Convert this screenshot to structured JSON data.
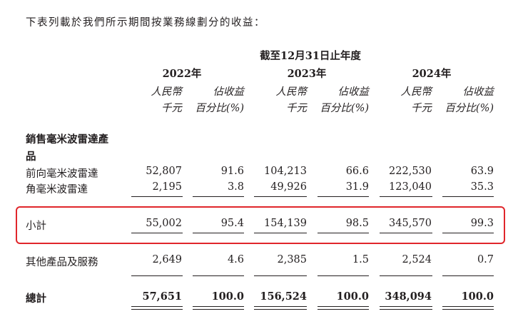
{
  "intro": "下表列載於我們所示期間按業務線劃分的收益：",
  "period_header": "截至12月31日止年度",
  "years": [
    "2022年",
    "2023年",
    "2024年"
  ],
  "col_header_rmb_1": "人民幣",
  "col_header_rmb_2": "千元",
  "col_header_pct_1": "佔收益",
  "col_header_pct_2": "百分比(%)",
  "category_label": "銷售毫米波雷達產品",
  "rows": [
    {
      "label": "前向毫米波雷達",
      "v2022": "52,807",
      "p2022": "91.6",
      "v2023": "104,213",
      "p2023": "66.6",
      "v2024": "222,530",
      "p2024": "63.9"
    },
    {
      "label": "角毫米波雷達",
      "v2022": "2,195",
      "p2022": "3.8",
      "v2023": "49,926",
      "p2023": "31.9",
      "v2024": "123,040",
      "p2024": "35.3"
    },
    {
      "label": "小計",
      "v2022": "55,002",
      "p2022": "95.4",
      "v2023": "154,139",
      "p2023": "98.5",
      "v2024": "345,570",
      "p2024": "99.3"
    },
    {
      "label": "其他產品及服務",
      "v2022": "2,649",
      "p2022": "4.6",
      "v2023": "2,385",
      "p2023": "1.5",
      "v2024": "2,524",
      "p2024": "0.7"
    },
    {
      "label": "總計",
      "v2022": "57,651",
      "p2022": "100.0",
      "v2023": "156,524",
      "p2023": "100.0",
      "v2024": "348,094",
      "p2024": "100.0"
    }
  ],
  "highlight_color": "#e0262b"
}
